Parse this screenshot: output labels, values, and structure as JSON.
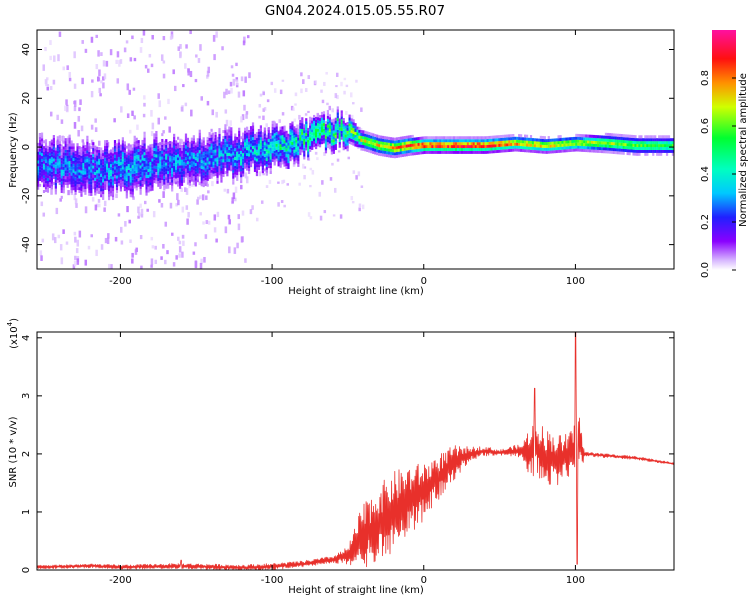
{
  "figure_title": "GN04.2024.015.05.55.R07",
  "colors": {
    "frame": "#000000",
    "snr_line": "#e8302b",
    "spectro_bg": "#ffffff"
  },
  "chart_data": [
    {
      "type": "heatmap",
      "xlabel": "Height of straight line (km)",
      "ylabel": "Frequency (Hz)",
      "xlim": [
        -255,
        165
      ],
      "ylim": [
        -50,
        48
      ],
      "x_ticks": [
        -200,
        -100,
        0,
        100
      ],
      "y_ticks": [
        -40,
        -20,
        0,
        20,
        40
      ],
      "colorbar": {
        "label": "Normalized spectral amplitude",
        "range": [
          0,
          1
        ],
        "ticks": [
          "0.0",
          "0.2",
          "0.4",
          "0.6",
          "0.8"
        ],
        "tick_values": [
          0.0,
          0.2,
          0.4,
          0.6,
          0.8
        ],
        "colormap": [
          "#ffffff",
          "#8a00ff",
          "#2020ff",
          "#00d0ff",
          "#00ff40",
          "#e0ff00",
          "#ff8000",
          "#ff0000",
          "#ff1090"
        ]
      },
      "ridge": {
        "x": [
          -250,
          -220,
          -190,
          -160,
          -130,
          -110,
          -90,
          -75,
          -60,
          -50,
          -45,
          -40,
          -30,
          -20,
          -10,
          0,
          20,
          40,
          60,
          80,
          100,
          120,
          140,
          165
        ],
        "f": [
          -8,
          -10,
          -8,
          -6,
          -4,
          -2,
          0,
          3,
          6,
          7,
          4,
          2,
          0,
          -1,
          0,
          0,
          0,
          0,
          1,
          0,
          1,
          1,
          0,
          0
        ],
        "amp": [
          0.3,
          0.32,
          0.35,
          0.33,
          0.35,
          0.4,
          0.5,
          0.5,
          0.55,
          0.6,
          0.6,
          0.7,
          0.75,
          0.8,
          0.85,
          0.9,
          0.95,
          0.92,
          0.8,
          0.75,
          0.7,
          0.65,
          0.6,
          0.55
        ],
        "spread_hz": [
          10,
          10,
          10,
          9,
          9,
          8,
          7,
          6,
          6,
          5,
          4,
          3,
          3,
          3,
          3,
          2.5,
          2.5,
          2.5,
          2.5,
          2.5,
          2.5,
          3,
          3,
          3
        ]
      }
    },
    {
      "type": "line",
      "xlabel": "Height of straight line (km)",
      "ylabel": "SNR (10 * v/v)",
      "y_multiplier": "(x10",
      "y_multiplier_exp": "4",
      "y_multiplier_close": ")",
      "xlim": [
        -255,
        165
      ],
      "ylim": [
        0,
        4.1
      ],
      "x_ticks": [
        -200,
        -100,
        0,
        100
      ],
      "y_ticks": [
        0,
        1,
        2,
        3,
        4
      ],
      "envelope": {
        "x": [
          -255,
          -220,
          -200,
          -160,
          -120,
          -100,
          -80,
          -60,
          -50,
          -40,
          -30,
          -20,
          -10,
          0,
          10,
          20,
          30,
          40,
          50,
          60,
          70,
          75,
          80,
          90,
          95,
          100,
          102,
          105,
          120,
          140,
          165
        ],
        "y": [
          0.05,
          0.07,
          0.05,
          0.07,
          0.04,
          0.06,
          0.1,
          0.18,
          0.25,
          0.55,
          0.8,
          1.0,
          1.2,
          1.35,
          1.6,
          1.85,
          2.0,
          2.05,
          2.02,
          2.05,
          2.05,
          2.1,
          1.95,
          1.9,
          1.95,
          2.0,
          2.3,
          2.0,
          1.97,
          1.93,
          1.83
        ]
      },
      "noise_amp": {
        "x": [
          -255,
          -60,
          -50,
          -40,
          -20,
          0,
          20,
          30,
          50,
          65,
          70,
          80,
          95,
          102,
          106,
          165
        ],
        "y": [
          0.03,
          0.06,
          0.15,
          0.6,
          0.7,
          0.5,
          0.3,
          0.12,
          0.05,
          0.12,
          0.45,
          0.5,
          0.4,
          0.6,
          0.04,
          0.02
        ]
      },
      "peaks": [
        {
          "x": -160,
          "y": 0.17
        },
        {
          "x": 73,
          "y": 3.13
        },
        {
          "x": 100,
          "y": 4.1
        },
        {
          "x": 101,
          "y": 0.1
        }
      ]
    }
  ]
}
